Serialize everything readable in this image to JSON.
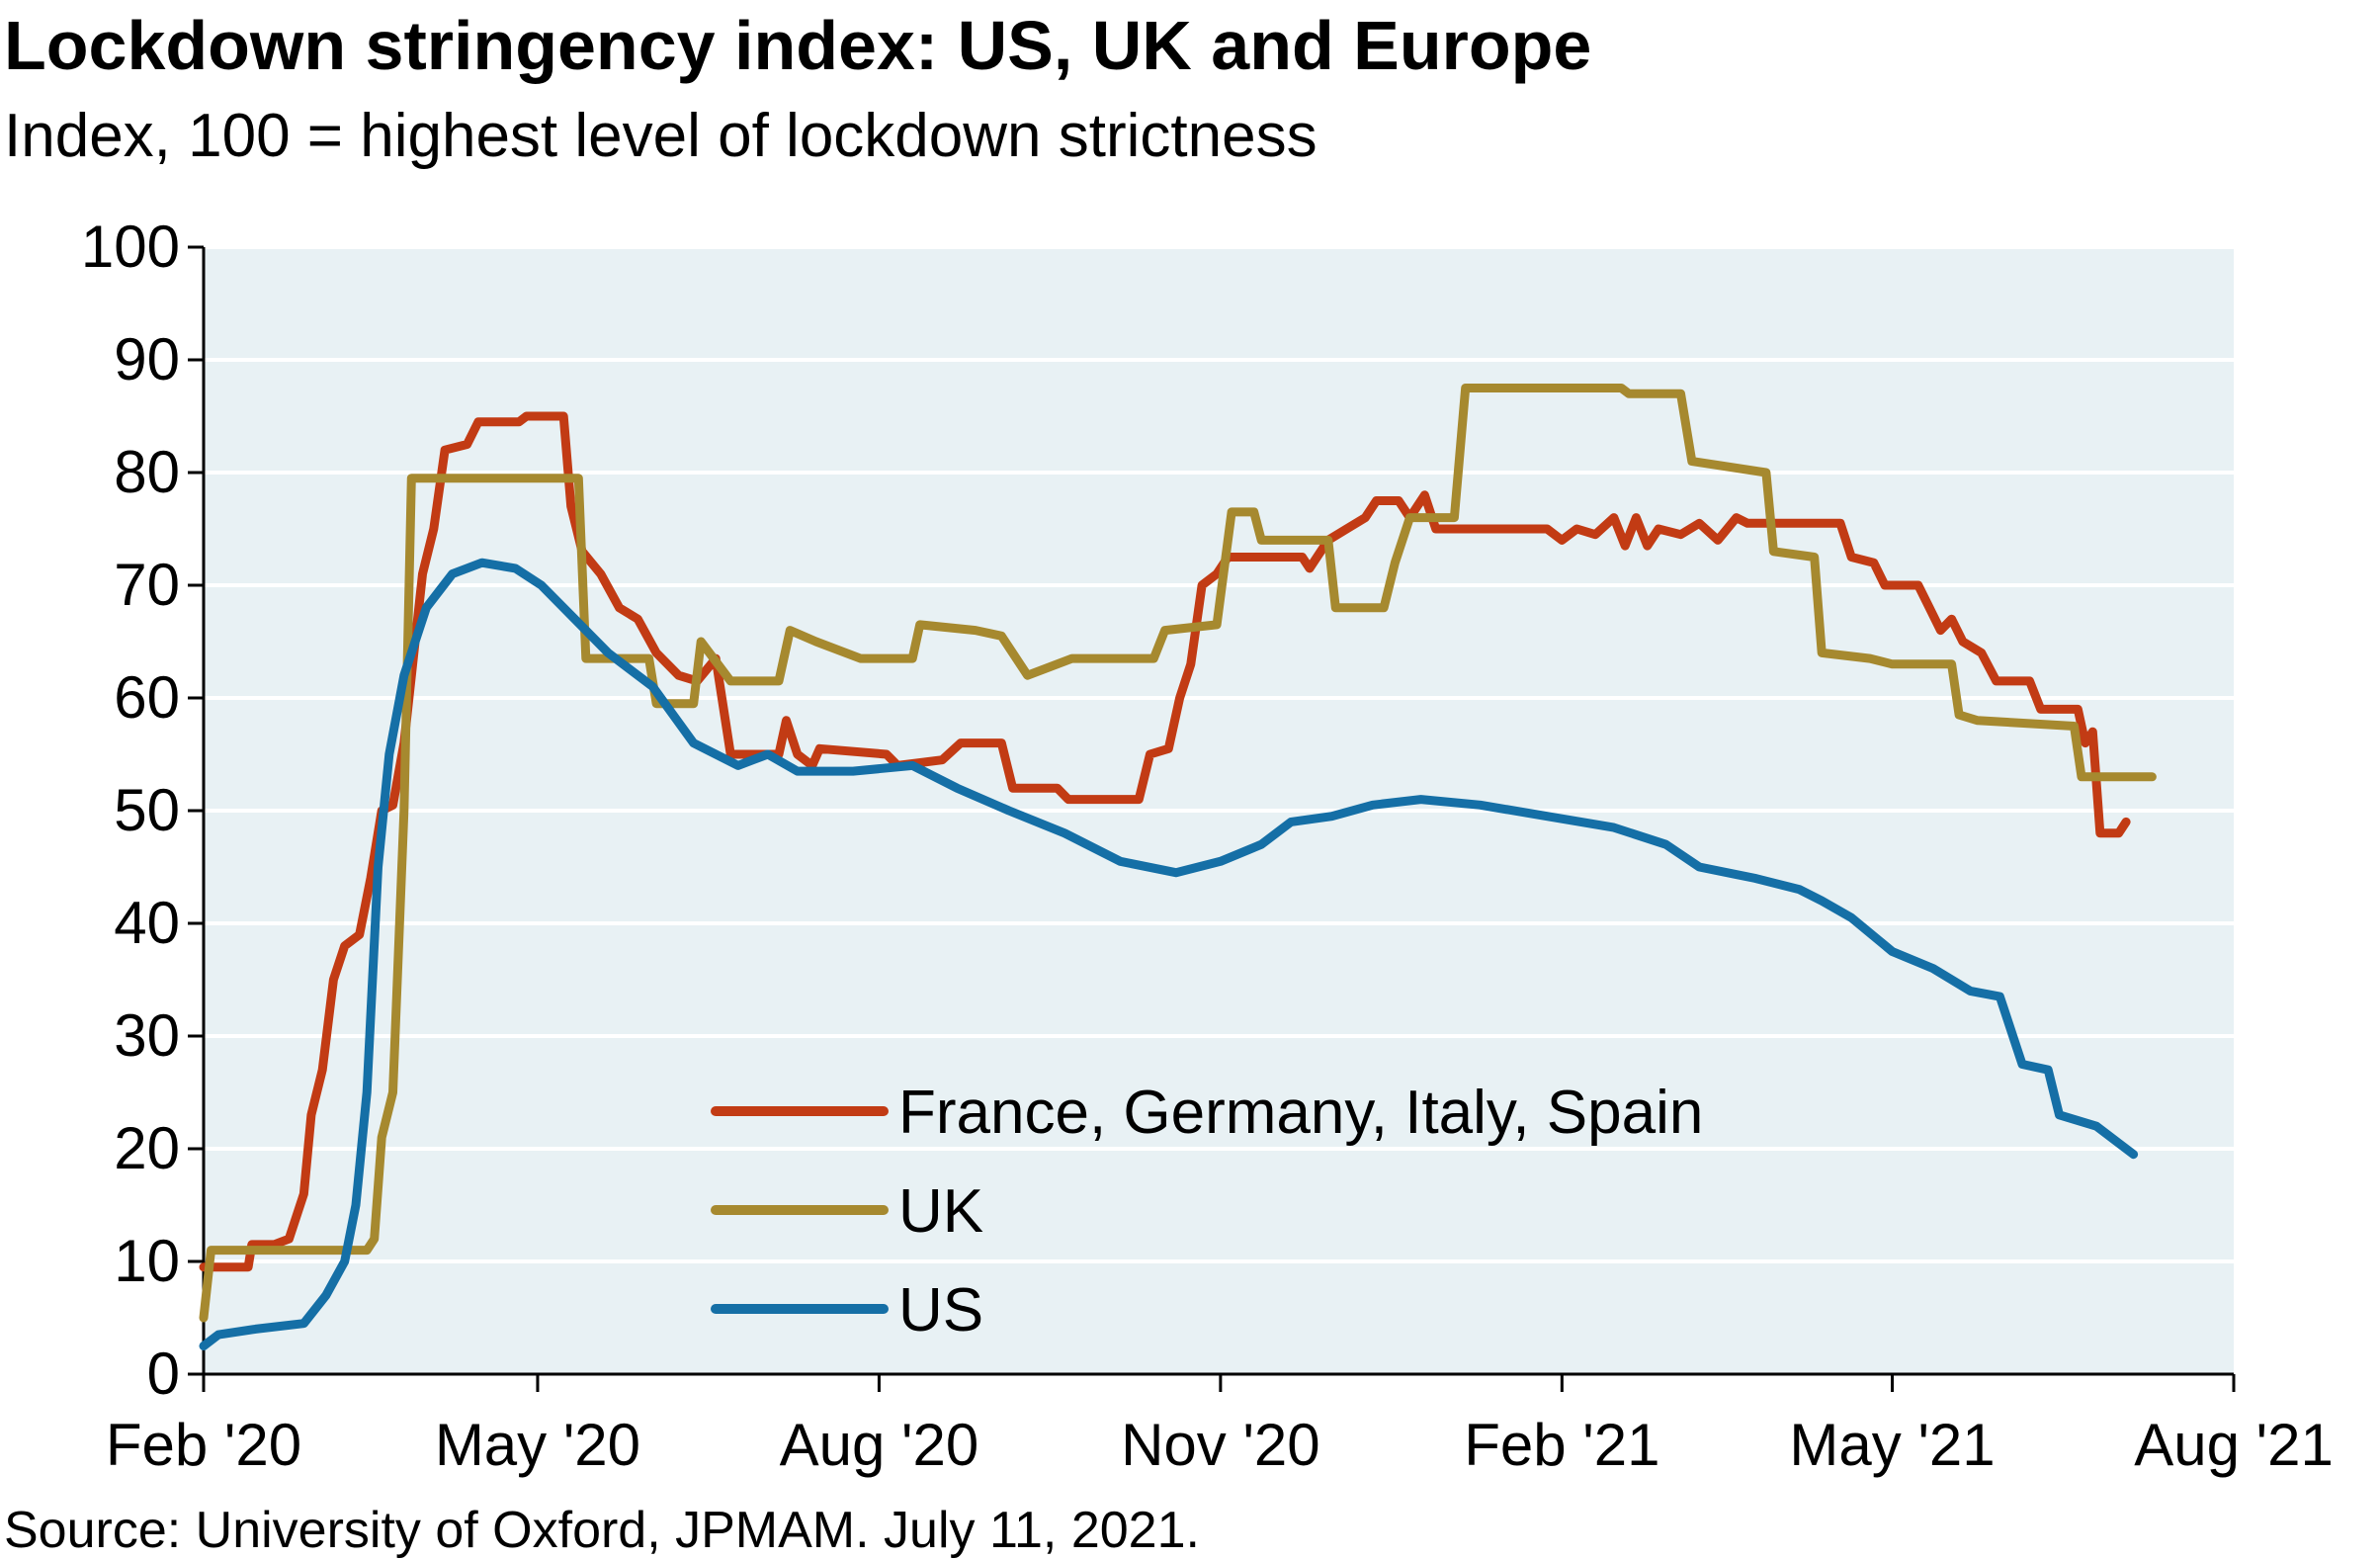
{
  "chart_data": {
    "type": "line",
    "title": "Lockdown stringency index: US, UK and Europe",
    "subtitle": "Index, 100 = highest level of lockdown strictness",
    "source": "Source: University of Oxford, JPMAM. July 11, 2021.",
    "ylim": [
      0,
      100
    ],
    "yticks": [
      "0",
      "10",
      "20",
      "30",
      "40",
      "50",
      "60",
      "70",
      "80",
      "90",
      "100"
    ],
    "xlim": [
      "2020-02-01",
      "2021-08-01"
    ],
    "xticks": [
      {
        "date": "2020-02-01",
        "label": "Feb '20"
      },
      {
        "date": "2020-05-01",
        "label": "May '20"
      },
      {
        "date": "2020-08-01",
        "label": "Aug '20"
      },
      {
        "date": "2020-11-01",
        "label": "Nov '20"
      },
      {
        "date": "2021-02-01",
        "label": "Feb '21"
      },
      {
        "date": "2021-05-01",
        "label": "May '21"
      },
      {
        "date": "2021-08-01",
        "label": "Aug '21"
      }
    ],
    "grid": "horizontal",
    "legend_position": "bottom-center",
    "background_color": "#e8f1f4",
    "series": [
      {
        "name": "France, Germany, Italy, Spain",
        "color": "#c23b14",
        "points": [
          [
            "2020-02-01",
            9.5
          ],
          [
            "2020-02-13",
            9.5
          ],
          [
            "2020-02-14",
            11.5
          ],
          [
            "2020-02-20",
            11.5
          ],
          [
            "2020-02-24",
            12
          ],
          [
            "2020-02-28",
            16
          ],
          [
            "2020-03-01",
            23
          ],
          [
            "2020-03-04",
            27
          ],
          [
            "2020-03-07",
            35
          ],
          [
            "2020-03-10",
            38
          ],
          [
            "2020-03-14",
            39
          ],
          [
            "2020-03-17",
            44
          ],
          [
            "2020-03-20",
            50
          ],
          [
            "2020-03-23",
            50.5
          ],
          [
            "2020-03-26",
            56
          ],
          [
            "2020-03-28",
            62
          ],
          [
            "2020-03-31",
            71
          ],
          [
            "2020-04-03",
            75
          ],
          [
            "2020-04-06",
            82
          ],
          [
            "2020-04-12",
            82.5
          ],
          [
            "2020-04-15",
            84.5
          ],
          [
            "2020-04-26",
            84.5
          ],
          [
            "2020-04-28",
            85
          ],
          [
            "2020-05-08",
            85
          ],
          [
            "2020-05-10",
            77
          ],
          [
            "2020-05-13",
            73
          ],
          [
            "2020-05-18",
            71
          ],
          [
            "2020-05-23",
            68
          ],
          [
            "2020-05-28",
            67
          ],
          [
            "2020-06-02",
            64
          ],
          [
            "2020-06-08",
            62
          ],
          [
            "2020-06-13",
            61.5
          ],
          [
            "2020-06-18",
            63.5
          ],
          [
            "2020-06-22",
            55
          ],
          [
            "2020-07-05",
            55
          ],
          [
            "2020-07-07",
            58
          ],
          [
            "2020-07-10",
            55
          ],
          [
            "2020-07-14",
            54
          ],
          [
            "2020-07-16",
            55.5
          ],
          [
            "2020-08-03",
            55
          ],
          [
            "2020-08-06",
            54
          ],
          [
            "2020-08-18",
            54.5
          ],
          [
            "2020-08-23",
            56
          ],
          [
            "2020-09-03",
            56
          ],
          [
            "2020-09-06",
            52
          ],
          [
            "2020-09-18",
            52
          ],
          [
            "2020-09-21",
            51
          ],
          [
            "2020-10-06",
            51
          ],
          [
            "2020-10-10",
            51
          ],
          [
            "2020-10-13",
            55
          ],
          [
            "2020-10-18",
            55.5
          ],
          [
            "2020-10-21",
            60
          ],
          [
            "2020-10-24",
            63
          ],
          [
            "2020-10-27",
            70
          ],
          [
            "2020-10-31",
            71
          ],
          [
            "2020-11-03",
            72.5
          ],
          [
            "2020-11-23",
            72.5
          ],
          [
            "2020-11-25",
            71.5
          ],
          [
            "2020-11-30",
            74
          ],
          [
            "2020-12-05",
            75
          ],
          [
            "2020-12-10",
            76
          ],
          [
            "2020-12-13",
            77.5
          ],
          [
            "2020-12-19",
            77.5
          ],
          [
            "2020-12-22",
            76
          ],
          [
            "2020-12-26",
            78
          ],
          [
            "2020-12-29",
            75
          ],
          [
            "2021-01-28",
            75
          ],
          [
            "2021-02-01",
            74
          ],
          [
            "2021-02-05",
            75
          ],
          [
            "2021-02-10",
            74.5
          ],
          [
            "2021-02-15",
            76
          ],
          [
            "2021-02-18",
            73.5
          ],
          [
            "2021-02-21",
            76
          ],
          [
            "2021-02-24",
            73.5
          ],
          [
            "2021-02-27",
            75
          ],
          [
            "2021-03-05",
            74.5
          ],
          [
            "2021-03-10",
            75.5
          ],
          [
            "2021-03-15",
            74
          ],
          [
            "2021-03-20",
            76
          ],
          [
            "2021-03-23",
            75.5
          ],
          [
            "2021-04-17",
            75.5
          ],
          [
            "2021-04-20",
            72.5
          ],
          [
            "2021-04-26",
            72
          ],
          [
            "2021-04-29",
            70
          ],
          [
            "2021-05-08",
            70
          ],
          [
            "2021-05-11",
            68
          ],
          [
            "2021-05-14",
            66
          ],
          [
            "2021-05-17",
            67
          ],
          [
            "2021-05-20",
            65
          ],
          [
            "2021-05-25",
            64
          ],
          [
            "2021-05-29",
            61.5
          ],
          [
            "2021-06-07",
            61.5
          ],
          [
            "2021-06-10",
            59
          ],
          [
            "2021-06-20",
            59
          ],
          [
            "2021-06-22",
            56
          ],
          [
            "2021-06-24",
            57
          ],
          [
            "2021-06-26",
            48
          ],
          [
            "2021-07-01",
            48
          ],
          [
            "2021-07-03",
            49
          ]
        ]
      },
      {
        "name": "UK",
        "color": "#a6892f",
        "points": [
          [
            "2020-02-01",
            5
          ],
          [
            "2020-02-03",
            11
          ],
          [
            "2020-03-16",
            11
          ],
          [
            "2020-03-18",
            12
          ],
          [
            "2020-03-20",
            21
          ],
          [
            "2020-03-23",
            25
          ],
          [
            "2020-03-26",
            50
          ],
          [
            "2020-03-28",
            79.5
          ],
          [
            "2020-05-12",
            79.5
          ],
          [
            "2020-05-14",
            63.5
          ],
          [
            "2020-05-31",
            63.5
          ],
          [
            "2020-06-02",
            59.5
          ],
          [
            "2020-06-12",
            59.5
          ],
          [
            "2020-06-14",
            65
          ],
          [
            "2020-06-22",
            61.5
          ],
          [
            "2020-07-05",
            61.5
          ],
          [
            "2020-07-08",
            66
          ],
          [
            "2020-07-15",
            65
          ],
          [
            "2020-07-27",
            63.5
          ],
          [
            "2020-08-10",
            63.5
          ],
          [
            "2020-08-12",
            66.5
          ],
          [
            "2020-08-27",
            66
          ],
          [
            "2020-09-03",
            65.5
          ],
          [
            "2020-09-10",
            62
          ],
          [
            "2020-09-22",
            63.5
          ],
          [
            "2020-10-14",
            63.5
          ],
          [
            "2020-10-17",
            66
          ],
          [
            "2020-10-31",
            66.5
          ],
          [
            "2020-11-04",
            76.5
          ],
          [
            "2020-11-10",
            76.5
          ],
          [
            "2020-11-12",
            74
          ],
          [
            "2020-11-30",
            74
          ],
          [
            "2020-12-02",
            68
          ],
          [
            "2020-12-15",
            68
          ],
          [
            "2020-12-18",
            72
          ],
          [
            "2020-12-22",
            76
          ],
          [
            "2021-01-03",
            76
          ],
          [
            "2021-01-06",
            87.5
          ],
          [
            "2021-02-17",
            87.5
          ],
          [
            "2021-02-19",
            87
          ],
          [
            "2021-03-05",
            87
          ],
          [
            "2021-03-08",
            81
          ],
          [
            "2021-03-28",
            80
          ],
          [
            "2021-03-30",
            73
          ],
          [
            "2021-04-10",
            72.5
          ],
          [
            "2021-04-12",
            64
          ],
          [
            "2021-04-25",
            63.5
          ],
          [
            "2021-05-01",
            63
          ],
          [
            "2021-05-17",
            63
          ],
          [
            "2021-05-19",
            58.5
          ],
          [
            "2021-05-24",
            58
          ],
          [
            "2021-06-19",
            57.5
          ],
          [
            "2021-06-21",
            53
          ],
          [
            "2021-07-10",
            53
          ]
        ]
      },
      {
        "name": "US",
        "color": "#156fa6",
        "points": [
          [
            "2020-02-01",
            2.5
          ],
          [
            "2020-02-05",
            3.5
          ],
          [
            "2020-02-15",
            4
          ],
          [
            "2020-02-28",
            4.5
          ],
          [
            "2020-03-05",
            7
          ],
          [
            "2020-03-10",
            10
          ],
          [
            "2020-03-13",
            15
          ],
          [
            "2020-03-16",
            25
          ],
          [
            "2020-03-19",
            45
          ],
          [
            "2020-03-22",
            55
          ],
          [
            "2020-03-26",
            62
          ],
          [
            "2020-04-01",
            68
          ],
          [
            "2020-04-08",
            71
          ],
          [
            "2020-04-16",
            72
          ],
          [
            "2020-04-25",
            71.5
          ],
          [
            "2020-05-02",
            70
          ],
          [
            "2020-05-11",
            67
          ],
          [
            "2020-05-20",
            64
          ],
          [
            "2020-06-01",
            61
          ],
          [
            "2020-06-12",
            56
          ],
          [
            "2020-06-24",
            54
          ],
          [
            "2020-07-02",
            55
          ],
          [
            "2020-07-10",
            53.5
          ],
          [
            "2020-07-25",
            53.5
          ],
          [
            "2020-08-10",
            54
          ],
          [
            "2020-08-22",
            52
          ],
          [
            "2020-09-05",
            50
          ],
          [
            "2020-09-20",
            48
          ],
          [
            "2020-10-05",
            45.5
          ],
          [
            "2020-10-20",
            44.5
          ],
          [
            "2020-11-01",
            45.5
          ],
          [
            "2020-11-12",
            47
          ],
          [
            "2020-11-20",
            49
          ],
          [
            "2020-12-01",
            49.5
          ],
          [
            "2020-12-12",
            50.5
          ],
          [
            "2020-12-25",
            51
          ],
          [
            "2021-01-10",
            50.5
          ],
          [
            "2021-01-28",
            49.5
          ],
          [
            "2021-02-15",
            48.5
          ],
          [
            "2021-03-01",
            47
          ],
          [
            "2021-03-10",
            45
          ],
          [
            "2021-03-25",
            44
          ],
          [
            "2021-04-06",
            43
          ],
          [
            "2021-04-12",
            42
          ],
          [
            "2021-04-20",
            40.5
          ],
          [
            "2021-05-01",
            37.5
          ],
          [
            "2021-05-12",
            36
          ],
          [
            "2021-05-22",
            34
          ],
          [
            "2021-05-30",
            33.5
          ],
          [
            "2021-06-05",
            27.5
          ],
          [
            "2021-06-12",
            27
          ],
          [
            "2021-06-15",
            23
          ],
          [
            "2021-06-25",
            22
          ],
          [
            "2021-07-01",
            20.5
          ],
          [
            "2021-07-05",
            19.5
          ]
        ]
      }
    ]
  }
}
